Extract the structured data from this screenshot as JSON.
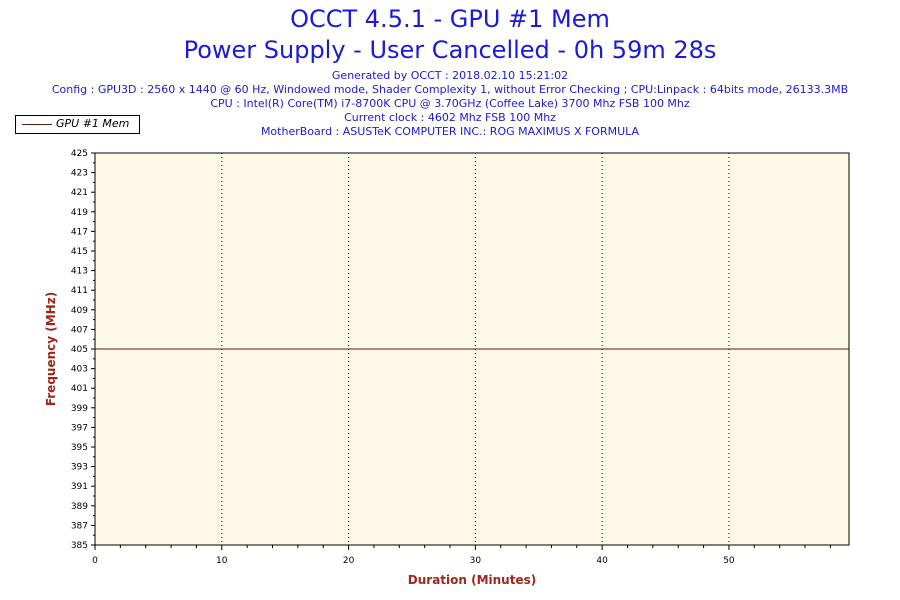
{
  "header": {
    "title_line1": "OCCT 4.5.1 - GPU #1 Mem",
    "title_line2": "Power Supply - User Cancelled - 0h 59m 28s",
    "generated": "Generated by OCCT : 2018.02.10 15:21:02",
    "config": "Config : GPU3D : 2560 x 1440 @ 60 Hz, Windowed mode, Shader Complexity 1, without Error Checking ; CPU:Linpack : 64bits mode, 26133.3MB",
    "cpu": "CPU : Intel(R) Core(TM) i7-8700K CPU @ 3.70GHz (Coffee Lake) 3700 Mhz FSB 100 Mhz",
    "clock": "Current clock : 4602 Mhz FSB 100 Mhz",
    "motherboard": "MotherBoard : ASUSTeK COMPUTER INC.: ROG MAXIMUS X FORMULA"
  },
  "colors": {
    "title": "#1a1adb",
    "axis_title": "#a0261c",
    "plot_bg": "#fef8e8",
    "series": "#5a1a10"
  },
  "chart_data": {
    "type": "line",
    "xlabel": "Duration (Minutes)",
    "ylabel": "Frequency (MHz)",
    "xlim": [
      0,
      59.47
    ],
    "ylim": [
      385,
      425
    ],
    "x_ticks": [
      0,
      10,
      20,
      30,
      40,
      50
    ],
    "y_ticks": [
      385,
      387,
      389,
      391,
      393,
      395,
      397,
      399,
      401,
      403,
      405,
      407,
      409,
      411,
      413,
      415,
      417,
      419,
      421,
      423,
      425
    ],
    "grid": "vertical-dotted",
    "legend": "top-left",
    "series": [
      {
        "name": "GPU #1 Mem",
        "x": [
          0,
          59.47
        ],
        "values": [
          405,
          405
        ]
      }
    ]
  }
}
